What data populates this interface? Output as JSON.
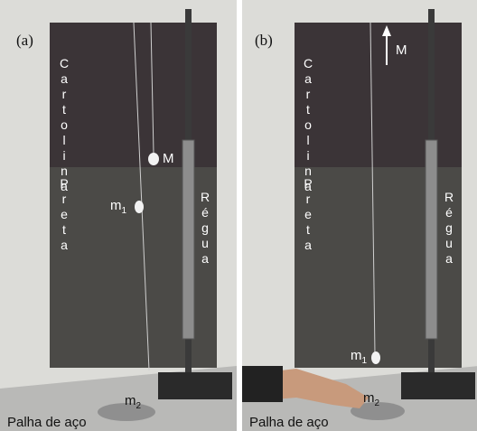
{
  "panels": [
    {
      "label": "(a)",
      "board_top": "Cartolina",
      "board_bottom": "Preta",
      "ruler": "Régua",
      "mass_M": "M",
      "mass_m1": {
        "base": "m",
        "sub": "1"
      },
      "mass_m2": {
        "base": "m",
        "sub": "2"
      },
      "steel_wool": "Palha de aço"
    },
    {
      "label": "(b)",
      "board_top": "Cartolina",
      "board_bottom": "Preta",
      "ruler": "Régua",
      "mass_M": "M",
      "mass_m1": {
        "base": "m",
        "sub": "1"
      },
      "mass_m2": {
        "base": "m",
        "sub": "2"
      },
      "steel_wool": "Palha de aço"
    }
  ]
}
